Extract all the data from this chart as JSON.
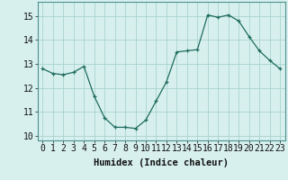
{
  "x": [
    0,
    1,
    2,
    3,
    4,
    5,
    6,
    7,
    8,
    9,
    10,
    11,
    12,
    13,
    14,
    15,
    16,
    17,
    18,
    19,
    20,
    21,
    22,
    23
  ],
  "y": [
    12.8,
    12.6,
    12.55,
    12.65,
    12.9,
    11.65,
    10.75,
    10.35,
    10.35,
    10.3,
    10.65,
    11.45,
    12.25,
    13.5,
    13.55,
    13.6,
    15.05,
    14.95,
    15.05,
    14.8,
    14.15,
    13.55,
    13.15,
    12.8
  ],
  "xlabel": "Humidex (Indice chaleur)",
  "line_color": "#1e6b5e",
  "marker_color": "#1e6b5e",
  "bg_color": "#d7f0ee",
  "grid_color": "#a8d4ce",
  "axis_color": "#4a9090",
  "ylim": [
    9.8,
    15.6
  ],
  "xlim": [
    -0.5,
    23.5
  ],
  "yticks": [
    10,
    11,
    12,
    13,
    14,
    15
  ],
  "xticks": [
    0,
    1,
    2,
    3,
    4,
    5,
    6,
    7,
    8,
    9,
    10,
    11,
    12,
    13,
    14,
    15,
    16,
    17,
    18,
    19,
    20,
    21,
    22,
    23
  ],
  "xlabel_fontsize": 7.5,
  "tick_fontsize": 7.0
}
